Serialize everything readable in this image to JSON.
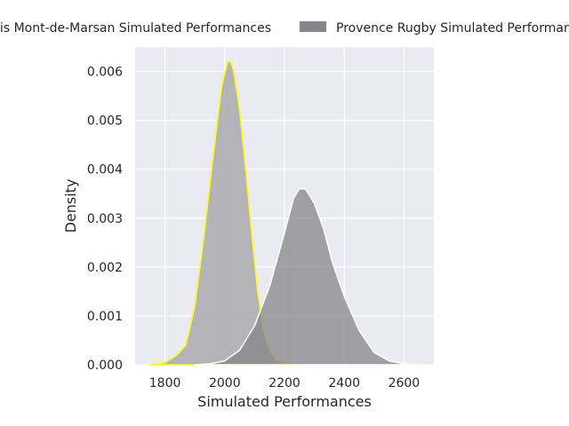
{
  "chart_data": {
    "type": "area",
    "title": "",
    "xlabel": "Simulated Performances",
    "ylabel": "Density",
    "xlim": [
      1700,
      2700
    ],
    "ylim": [
      0,
      0.0065
    ],
    "grid": true,
    "legend_placement": "top-center",
    "xticks": [
      1800,
      2000,
      2200,
      2400,
      2600
    ],
    "xtick_labels": [
      "1800",
      "2000",
      "2200",
      "2400",
      "2600"
    ],
    "yticks": [
      0,
      0.001,
      0.002,
      0.003,
      0.004,
      0.005,
      0.006
    ],
    "ytick_labels": [
      "0.000",
      "0.001",
      "0.002",
      "0.003",
      "0.004",
      "0.005",
      "0.006"
    ],
    "series": [
      {
        "name": "Stade Montois Mont-de-Marsan Simulated Performances",
        "legend_text": "Stade Montois Mont-de-Marsan Simulated Performances",
        "fill": "#a9a9ae",
        "edge": "#ffff00",
        "x": [
          1750,
          1800,
          1840,
          1870,
          1900,
          1930,
          1960,
          1990,
          2010,
          2020,
          2030,
          2050,
          2070,
          2090,
          2110,
          2130,
          2150,
          2170,
          2200,
          2230,
          2260
        ],
        "y": [
          0.0,
          4e-05,
          0.0002,
          0.0004,
          0.0012,
          0.0026,
          0.0042,
          0.0057,
          0.0062,
          0.0062,
          0.006,
          0.0052,
          0.004,
          0.0027,
          0.0015,
          0.0007,
          0.0003,
          0.0001,
          3e-05,
          1e-05,
          0.0
        ]
      },
      {
        "name": "Provence Rugby Simulated Performances",
        "legend_text": "Provence Rugby Simulated Performances",
        "fill": "#85858a",
        "edge": "#ffffff",
        "x": [
          1900,
          1950,
          2000,
          2050,
          2100,
          2150,
          2200,
          2230,
          2250,
          2270,
          2300,
          2330,
          2360,
          2400,
          2450,
          2500,
          2550,
          2600,
          2650
        ],
        "y": [
          0.0,
          2e-05,
          8e-05,
          0.0003,
          0.0008,
          0.0016,
          0.0027,
          0.0034,
          0.0036,
          0.0036,
          0.0033,
          0.0028,
          0.0021,
          0.0014,
          0.0007,
          0.00025,
          8e-05,
          2e-05,
          0.0
        ]
      }
    ]
  },
  "colors": {
    "plot_background": "#eaeaf2",
    "grid": "#ffffff",
    "text": "#262626"
  }
}
